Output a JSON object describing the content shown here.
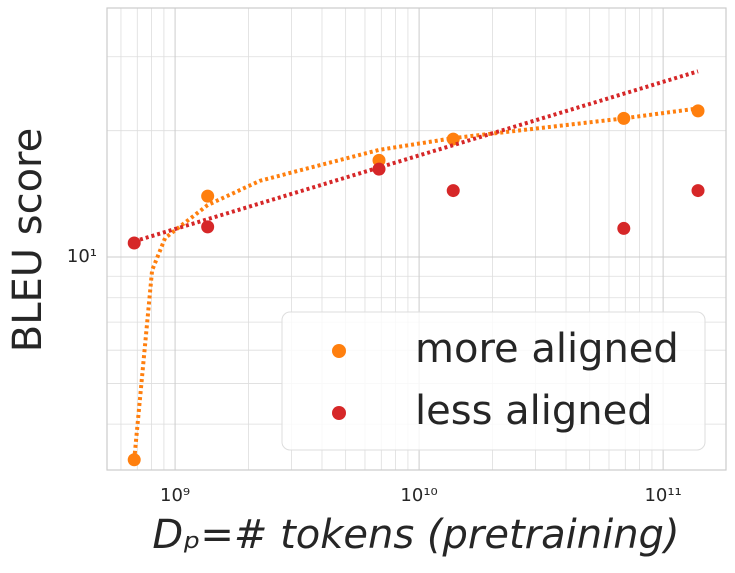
{
  "chart_data": {
    "type": "scatter",
    "xlabel": "Dₚ=# tokens (pretraining)",
    "ylabel": "BLEU score",
    "xscale": "log",
    "yscale": "log",
    "grid": true,
    "legend": "lower right",
    "xlim": [
      526000000,
      181000000000
    ],
    "ylim": [
      3.11,
      39.2
    ],
    "xticks": [
      {
        "value": 1000000000,
        "label": "10⁹"
      },
      {
        "value": 10000000000,
        "label": "10¹⁰"
      },
      {
        "value": 100000000000,
        "label": "10¹¹"
      }
    ],
    "xminorticks": [
      600000000,
      700000000,
      800000000,
      900000000,
      2000000000,
      3000000000,
      4000000000,
      5000000000,
      6000000000,
      7000000000,
      8000000000,
      9000000000,
      20000000000,
      30000000000,
      40000000000,
      50000000000,
      60000000000,
      70000000000,
      80000000000,
      90000000000
    ],
    "yticks": [
      {
        "value": 10,
        "label": "10¹"
      }
    ],
    "yminorticks": [
      4,
      5,
      6,
      7,
      8,
      9,
      20,
      30
    ],
    "series": [
      {
        "name": "more aligned",
        "color": "#ff7f0e",
        "x": [
          680000000,
          1360000000,
          6850000000,
          13800000000,
          69000000000,
          139000000000
        ],
        "values": [
          3.29,
          13.97,
          17.0,
          19.1,
          21.4,
          22.3
        ],
        "fit": {
          "x": [
            680000000,
            805000000,
            910000000,
            1360000000,
            2230000000,
            6850000000,
            13800000000,
            69000000000,
            139000000000
          ],
          "values": [
            3.29,
            9.3,
            11.1,
            13.3,
            15.2,
            18.0,
            19.2,
            21.4,
            22.6
          ]
        }
      },
      {
        "name": "less aligned",
        "color": "#d62728",
        "x": [
          680000000,
          1360000000,
          6850000000,
          13800000000,
          69000000000,
          139000000000
        ],
        "values": [
          10.8,
          11.8,
          16.2,
          14.4,
          11.7,
          14.4
        ],
        "fit": {
          "x": [
            680000000,
            139000000000
          ],
          "values": [
            10.9,
            27.7
          ]
        }
      }
    ]
  }
}
